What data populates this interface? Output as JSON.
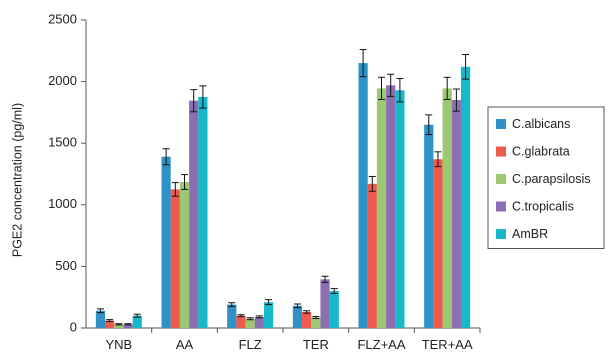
{
  "chart_data": {
    "type": "bar",
    "title": "",
    "xlabel": "",
    "ylabel": "PGE2 concentration (pg/ml)",
    "ylim": [
      0,
      2500
    ],
    "yticks": [
      0,
      500,
      1000,
      1500,
      2000,
      2500
    ],
    "categories": [
      "YNB",
      "AA",
      "FLZ",
      "TER",
      "FLZ+AA",
      "TER+AA"
    ],
    "legend_position": "right",
    "grid": false,
    "error_bars": true,
    "series": [
      {
        "name": "C.albicans",
        "color": "#2e92c7",
        "values": [
          140,
          1390,
          190,
          180,
          2150,
          1650
        ],
        "errors": [
          15,
          65,
          15,
          15,
          110,
          80
        ]
      },
      {
        "name": "C.glabrata",
        "color": "#ee5b4e",
        "values": [
          60,
          1125,
          100,
          130,
          1170,
          1370
        ],
        "errors": [
          8,
          55,
          8,
          10,
          60,
          60
        ]
      },
      {
        "name": "C.parapsilosis",
        "color": "#9dc770",
        "values": [
          30,
          1185,
          75,
          85,
          1945,
          1945
        ],
        "errors": [
          5,
          60,
          8,
          8,
          90,
          90
        ]
      },
      {
        "name": "C.tropicalis",
        "color": "#8c6fb3",
        "values": [
          30,
          1845,
          90,
          395,
          1970,
          1850
        ],
        "errors": [
          5,
          90,
          8,
          25,
          90,
          90
        ]
      },
      {
        "name": "AmBR",
        "color": "#17b8c9",
        "values": [
          100,
          1875,
          210,
          300,
          1930,
          2120
        ],
        "errors": [
          12,
          90,
          20,
          20,
          95,
          100
        ]
      }
    ]
  }
}
